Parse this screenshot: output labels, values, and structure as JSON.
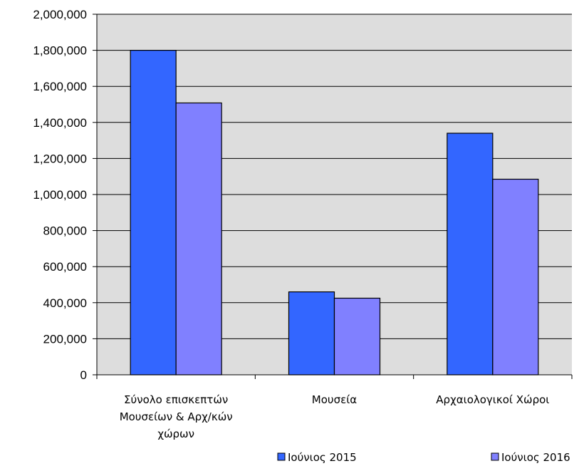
{
  "chart_data": {
    "type": "bar",
    "categories": [
      [
        "Σύνολο επισκεπτών",
        "Μουσείων & Αρχ/κών",
        "χώρων"
      ],
      [
        "Μουσεία"
      ],
      [
        "Αρχαιολογικοί Χώροι"
      ]
    ],
    "series": [
      {
        "name": "Ιούνιος 2015",
        "color": "#3366ff",
        "values": [
          1800000,
          460000,
          1340000
        ]
      },
      {
        "name": "Ιούνιος 2016",
        "color": "#8080ff",
        "values": [
          1508000,
          425000,
          1085000
        ]
      }
    ],
    "ylim": [
      0,
      2000000
    ],
    "yticks": [
      "0",
      "200,000",
      "400,000",
      "600,000",
      "800,000",
      "1,000,000",
      "1,200,000",
      "1,400,000",
      "1,600,000",
      "1,800,000",
      "2,000,000"
    ],
    "grid": true,
    "plot_background": "#dddddd",
    "legend_position": "bottom"
  }
}
